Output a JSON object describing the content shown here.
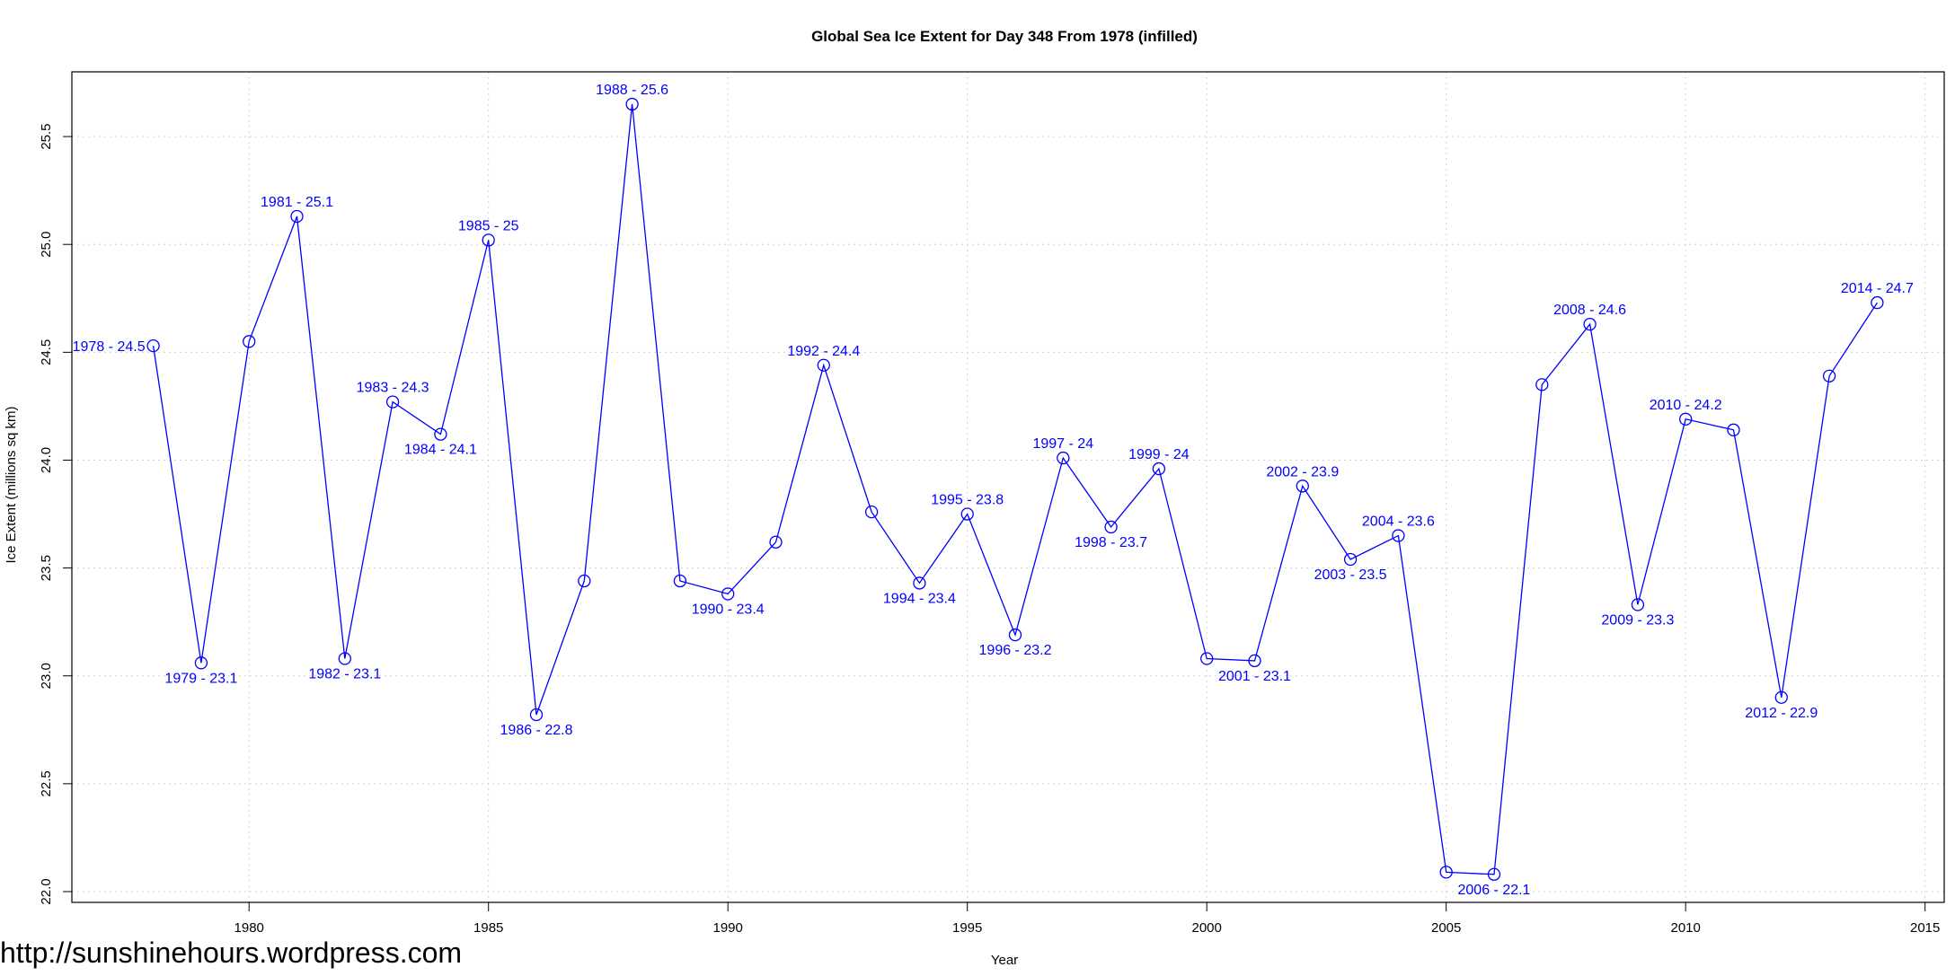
{
  "chart_data": {
    "type": "line",
    "title": "Global Sea Ice Extent for Day 348 From 1978 (infilled)",
    "xlabel": "Year",
    "ylabel": "Ice Extent (millions sq km)",
    "xlim": [
      1976.3,
      2015.4
    ],
    "ylim": [
      21.95,
      25.8
    ],
    "x_ticks": [
      1980,
      1985,
      1990,
      1995,
      2000,
      2005,
      2010,
      2015
    ],
    "y_ticks": [
      22.0,
      22.5,
      23.0,
      23.5,
      24.0,
      24.5,
      25.0,
      25.5
    ],
    "y_tick_labels": [
      "22.0",
      "22.5",
      "23.0",
      "23.5",
      "24.0",
      "24.5",
      "25.0",
      "25.5"
    ],
    "grid": true,
    "line_color": "#0000ff",
    "label_color": "#0000ff",
    "grid_color": "#d3d3d3",
    "series": [
      {
        "x": [
          1978,
          1979,
          1980,
          1981,
          1982,
          1983,
          1984,
          1985,
          1986,
          1987,
          1988,
          1989,
          1990,
          1991,
          1992,
          1993,
          1994,
          1995,
          1996,
          1997,
          1998,
          1999,
          2000,
          2001,
          2002,
          2003,
          2004,
          2005,
          2006,
          2007,
          2008,
          2009,
          2010,
          2011,
          2012,
          2013,
          2014
        ],
        "y": [
          24.53,
          23.06,
          24.55,
          25.13,
          23.08,
          24.27,
          24.12,
          25.02,
          22.82,
          23.44,
          25.65,
          23.44,
          23.38,
          23.62,
          24.44,
          23.76,
          23.43,
          23.75,
          23.19,
          24.01,
          23.69,
          23.96,
          23.08,
          23.07,
          23.88,
          23.54,
          23.65,
          22.09,
          22.08,
          24.35,
          24.63,
          23.33,
          24.19,
          24.14,
          22.9,
          24.39,
          24.73
        ]
      }
    ],
    "annotations": [
      {
        "x": 1978,
        "text": "1978 - 24.5",
        "pos": "left"
      },
      {
        "x": 1979,
        "text": "1979 - 23.1",
        "pos": "below"
      },
      {
        "x": 1981,
        "text": "1981 - 25.1",
        "pos": "above"
      },
      {
        "x": 1982,
        "text": "1982 - 23.1",
        "pos": "below"
      },
      {
        "x": 1983,
        "text": "1983 - 24.3",
        "pos": "above"
      },
      {
        "x": 1984,
        "text": "1984 - 24.1",
        "pos": "below"
      },
      {
        "x": 1985,
        "text": "1985 - 25",
        "pos": "above"
      },
      {
        "x": 1986,
        "text": "1986 - 22.8",
        "pos": "below"
      },
      {
        "x": 1988,
        "text": "1988 - 25.6",
        "pos": "above"
      },
      {
        "x": 1990,
        "text": "1990 - 23.4",
        "pos": "below"
      },
      {
        "x": 1992,
        "text": "1992 - 24.4",
        "pos": "above"
      },
      {
        "x": 1994,
        "text": "1994 - 23.4",
        "pos": "below"
      },
      {
        "x": 1995,
        "text": "1995 - 23.8",
        "pos": "above"
      },
      {
        "x": 1996,
        "text": "1996 - 23.2",
        "pos": "below"
      },
      {
        "x": 1997,
        "text": "1997 - 24",
        "pos": "above"
      },
      {
        "x": 1998,
        "text": "1998 - 23.7",
        "pos": "below"
      },
      {
        "x": 1999,
        "text": "1999 - 24",
        "pos": "above"
      },
      {
        "x": 2001,
        "text": "2001 - 23.1",
        "pos": "below"
      },
      {
        "x": 2002,
        "text": "2002 - 23.9",
        "pos": "above"
      },
      {
        "x": 2003,
        "text": "2003 - 23.5",
        "pos": "below"
      },
      {
        "x": 2004,
        "text": "2004 - 23.6",
        "pos": "above"
      },
      {
        "x": 2006,
        "text": "2006 - 22.1",
        "pos": "below"
      },
      {
        "x": 2008,
        "text": "2008 - 24.6",
        "pos": "above"
      },
      {
        "x": 2009,
        "text": "2009 - 23.3",
        "pos": "below"
      },
      {
        "x": 2010,
        "text": "2010 - 24.2",
        "pos": "above"
      },
      {
        "x": 2012,
        "text": "2012 - 22.9",
        "pos": "below"
      },
      {
        "x": 2014,
        "text": "2014 - 24.7",
        "pos": "above"
      }
    ]
  },
  "watermark": "http://sunshinehours.wordpress.com"
}
